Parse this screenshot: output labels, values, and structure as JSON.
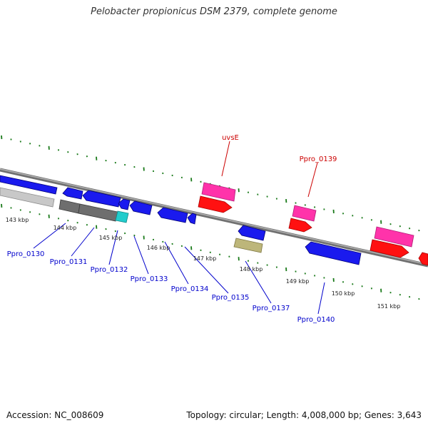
{
  "title": "Pelobacter propionicus DSM 2379, complete genome",
  "footer": {
    "accession": "Accession: NC_008609",
    "summary": "Topology: circular; Length: 4,008,000 bp; Genes: 3,643"
  },
  "colors": {
    "backbone": "#808080",
    "tick": "#1a7a1a",
    "forward_gene_label": "#cc0000",
    "reverse_gene_label": "#0000cc",
    "magenta": "#ff33aa",
    "red": "#ff1111",
    "blue": "#1a1aee",
    "gray_light": "#c8c8c8",
    "gray_dark": "#6e6e6e",
    "cyan": "#22cccc",
    "olive": "#bdb67a"
  },
  "kbp_labels": [
    "143 kbp",
    "144 kbp",
    "145 kbp",
    "146 kbp",
    "147 kbp",
    "148 kbp",
    "149 kbp",
    "150 kbp",
    "151 kbp"
  ],
  "gene_labels": [
    {
      "text": "uvsE",
      "strand": "forward"
    },
    {
      "text": "Ppro_0139",
      "strand": "forward"
    },
    {
      "text": "Ppro_0130",
      "strand": "reverse"
    },
    {
      "text": "Ppro_0131",
      "strand": "reverse"
    },
    {
      "text": "Ppro_0132",
      "strand": "reverse"
    },
    {
      "text": "Ppro_0133",
      "strand": "reverse"
    },
    {
      "text": "Ppro_0134",
      "strand": "reverse"
    },
    {
      "text": "Ppro_0135",
      "strand": "reverse"
    },
    {
      "text": "Ppro_0137",
      "strand": "reverse"
    },
    {
      "text": "Ppro_0140",
      "strand": "reverse"
    }
  ]
}
